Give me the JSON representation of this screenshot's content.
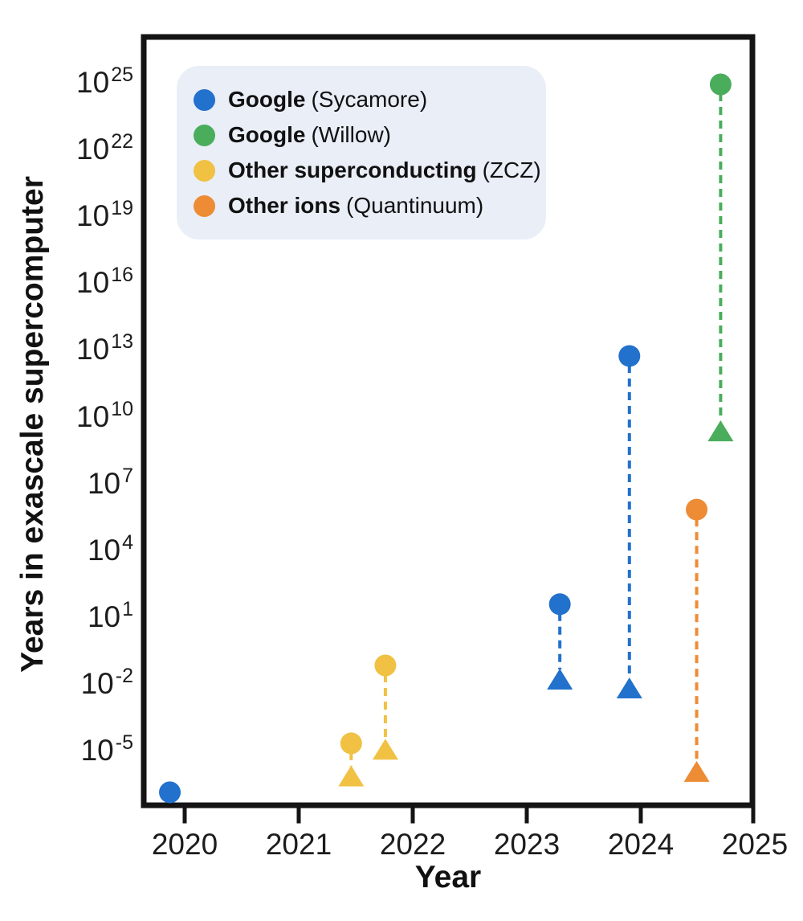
{
  "figure": {
    "background": "#ffffff",
    "frame_color": "#141414",
    "text_color": "#161616"
  },
  "legend": {
    "background": "#e9eef7",
    "items": [
      {
        "bold": "Google",
        "normal": "(Sycamore)",
        "color": "#2271cc"
      },
      {
        "bold": "Google",
        "normal": "(Willow)",
        "color": "#4aad5c"
      },
      {
        "bold": "Other superconducting",
        "normal": "(ZCZ)",
        "color": "#f0c143"
      },
      {
        "bold": "Other ions",
        "normal": "(Quantinuum)",
        "color": "#ed8c35"
      }
    ]
  },
  "chart_data": {
    "type": "scatter",
    "title": "",
    "xlabel": "Year",
    "ylabel": "Years in exascale supercomputer",
    "y_scale": "log",
    "grid": false,
    "legend_position": "upper-left",
    "x_ticks": [
      2020,
      2021,
      2022,
      2023,
      2024,
      2025
    ],
    "y_tick_exponents": [
      25,
      22,
      19,
      16,
      13,
      10,
      7,
      4,
      1,
      -2,
      -5
    ],
    "xlim": [
      2019.63,
      2025.02
    ],
    "ylim_exponents": [
      -7.35,
      27.25
    ],
    "series": [
      {
        "name": "Google",
        "detail": "Sycamore",
        "color": "#2271cc",
        "points": [
          {
            "year": 2019.87,
            "circle_exp": -6.8,
            "triangle_exp": null
          },
          {
            "year": 2023.29,
            "circle_exp": 1.65,
            "triangle_exp": -1.75
          },
          {
            "year": 2023.9,
            "circle_exp": 12.8,
            "triangle_exp": -2.15
          }
        ]
      },
      {
        "name": "Google",
        "detail": "Willow",
        "color": "#4aad5c",
        "points": [
          {
            "year": 2024.7,
            "circle_exp": 25.0,
            "triangle_exp": 9.4
          }
        ]
      },
      {
        "name": "Other superconducting",
        "detail": "ZCZ",
        "color": "#f0c143",
        "points": [
          {
            "year": 2021.46,
            "circle_exp": -4.6,
            "triangle_exp": -6.1
          },
          {
            "year": 2021.76,
            "circle_exp": -1.1,
            "triangle_exp": -4.9
          }
        ]
      },
      {
        "name": "Other ions",
        "detail": "Quantinuum",
        "color": "#ed8c35",
        "points": [
          {
            "year": 2024.49,
            "circle_exp": 5.9,
            "triangle_exp": -5.9
          }
        ]
      }
    ]
  }
}
